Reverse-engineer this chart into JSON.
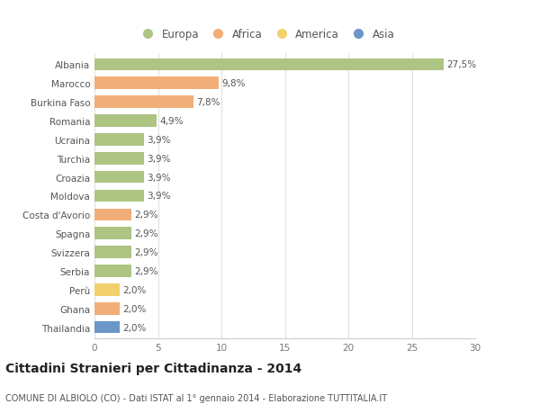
{
  "categories": [
    "Albania",
    "Marocco",
    "Burkina Faso",
    "Romania",
    "Ucraina",
    "Turchia",
    "Croazia",
    "Moldova",
    "Costa d'Avorio",
    "Spagna",
    "Svizzera",
    "Serbia",
    "Perù",
    "Ghana",
    "Thailandia"
  ],
  "values": [
    27.5,
    9.8,
    7.8,
    4.9,
    3.9,
    3.9,
    3.9,
    3.9,
    2.9,
    2.9,
    2.9,
    2.9,
    2.0,
    2.0,
    2.0
  ],
  "labels": [
    "27,5%",
    "9,8%",
    "7,8%",
    "4,9%",
    "3,9%",
    "3,9%",
    "3,9%",
    "3,9%",
    "2,9%",
    "2,9%",
    "2,9%",
    "2,9%",
    "2,0%",
    "2,0%",
    "2,0%"
  ],
  "continents": [
    "Europa",
    "Africa",
    "Africa",
    "Europa",
    "Europa",
    "Europa",
    "Europa",
    "Europa",
    "Africa",
    "Europa",
    "Europa",
    "Europa",
    "America",
    "Africa",
    "Asia"
  ],
  "continent_colors": {
    "Europa": "#adc483",
    "Africa": "#f2ae78",
    "America": "#f2d06b",
    "Asia": "#6b96c8"
  },
  "legend_order": [
    "Europa",
    "Africa",
    "America",
    "Asia"
  ],
  "xlim": [
    0,
    30
  ],
  "xticks": [
    0,
    5,
    10,
    15,
    20,
    25,
    30
  ],
  "title": "Cittadini Stranieri per Cittadinanza - 2014",
  "subtitle": "COMUNE DI ALBIOLO (CO) - Dati ISTAT al 1° gennaio 2014 - Elaborazione TUTTITALIA.IT",
  "background_color": "#ffffff",
  "bar_height": 0.65,
  "label_fontsize": 7.5,
  "tick_fontsize": 7.5,
  "title_fontsize": 10,
  "subtitle_fontsize": 7
}
